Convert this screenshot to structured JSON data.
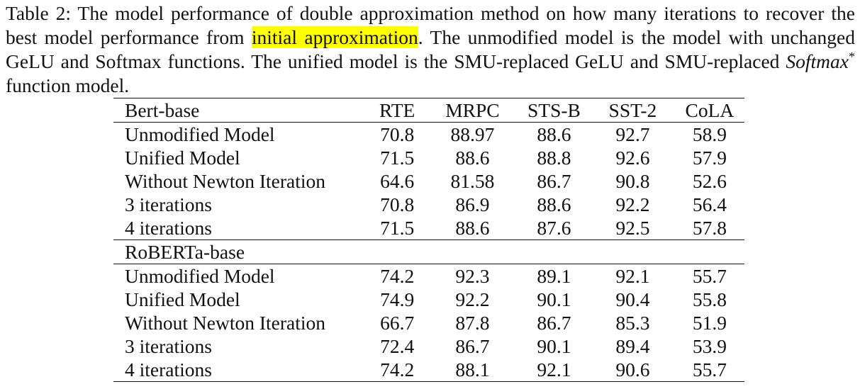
{
  "caption": {
    "prefix": "Table 2: The model performance of double approximation method on how many iterations to recover the best model performance from ",
    "highlight": "initial approximation",
    "middle": ". The unmodified model is the model with unchanged GeLU and Softmax functions. The unified model is the SMU-replaced GeLU and SMU-replaced ",
    "math": "Softmax",
    "sup": "*",
    "suffix": " function model."
  },
  "table": {
    "columns": [
      "RTE",
      "MRPC",
      "STS-B",
      "SST-2",
      "CoLA"
    ],
    "groups": [
      {
        "name": "Bert-base",
        "rows": [
          {
            "label": "Unmodified Model",
            "values": [
              "70.8",
              "88.97",
              "88.6",
              "92.7",
              "58.9"
            ]
          },
          {
            "label": "Unified Model",
            "values": [
              "71.5",
              "88.6",
              "88.8",
              "92.6",
              "57.9"
            ]
          },
          {
            "label": "Without Newton Iteration",
            "values": [
              "64.6",
              "81.58",
              "86.7",
              "90.8",
              "52.6"
            ]
          },
          {
            "label": "3 iterations",
            "values": [
              "70.8",
              "86.9",
              "88.6",
              "92.2",
              "56.4"
            ]
          },
          {
            "label": "4 iterations",
            "values": [
              "71.5",
              "88.6",
              "87.6",
              "92.5",
              "57.8"
            ]
          }
        ]
      },
      {
        "name": "RoBERTa-base",
        "rows": [
          {
            "label": "Unmodified Model",
            "values": [
              "74.2",
              "92.3",
              "89.1",
              "92.1",
              "55.7"
            ]
          },
          {
            "label": "Unified Model",
            "values": [
              "74.9",
              "92.2",
              "90.1",
              "90.4",
              "55.8"
            ]
          },
          {
            "label": "Without Newton Iteration",
            "values": [
              "66.7",
              "87.8",
              "86.7",
              "85.3",
              "51.9"
            ]
          },
          {
            "label": "3 iterations",
            "values": [
              "72.4",
              "86.7",
              "90.1",
              "89.4",
              "53.9"
            ]
          },
          {
            "label": "4 iterations",
            "values": [
              "74.2",
              "88.1",
              "92.1",
              "90.6",
              "55.7"
            ]
          }
        ]
      }
    ]
  }
}
